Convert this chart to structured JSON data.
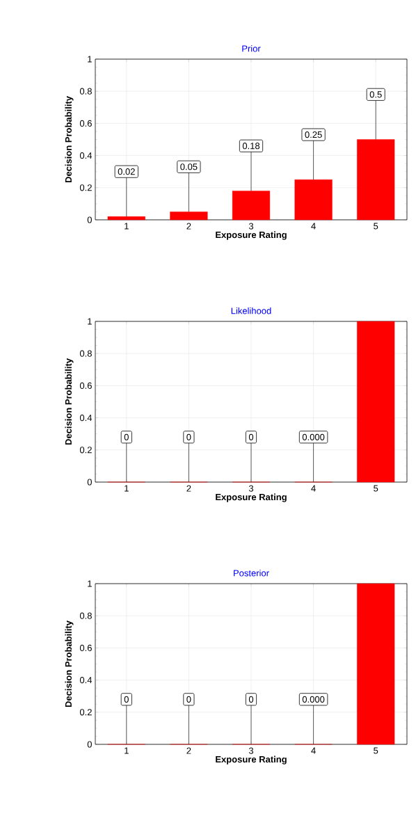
{
  "chart_data": [
    {
      "type": "bar",
      "title": "Prior",
      "xlabel": "Exposure Rating",
      "ylabel": "Decision Probability",
      "categories": [
        "1",
        "2",
        "3",
        "4",
        "5"
      ],
      "values": [
        0.02,
        0.05,
        0.18,
        0.25,
        0.5
      ],
      "color": "#ff0000",
      "ylim": [
        0,
        1
      ],
      "yticks": [
        0,
        0.2,
        0.4,
        0.6,
        0.8,
        1
      ],
      "grid": true,
      "value_labels": [
        "0.02",
        "0.05",
        "0.18",
        "0.25",
        "0.5"
      ]
    },
    {
      "type": "bar",
      "title": "Likelihood",
      "xlabel": "Exposure Rating",
      "ylabel": "Decision Probability",
      "categories": [
        "1",
        "2",
        "3",
        "4",
        "5"
      ],
      "values": [
        0,
        0,
        0,
        0,
        1
      ],
      "color": "#ff0000",
      "ylim": [
        0,
        1
      ],
      "yticks": [
        0,
        0.2,
        0.4,
        0.6,
        0.8,
        1
      ],
      "grid": true,
      "value_labels": [
        "0",
        "0",
        "0",
        "0.000",
        null
      ]
    },
    {
      "type": "bar",
      "title": "Posterior",
      "xlabel": "Exposure Rating",
      "ylabel": "Decision Probability",
      "categories": [
        "1",
        "2",
        "3",
        "4",
        "5"
      ],
      "values": [
        0,
        0,
        0,
        0,
        1
      ],
      "color": "#ff0000",
      "ylim": [
        0,
        1
      ],
      "yticks": [
        0,
        0.2,
        0.4,
        0.6,
        0.8,
        1
      ],
      "grid": true,
      "value_labels": [
        "0",
        "0",
        "0",
        "0.000",
        null
      ]
    }
  ]
}
